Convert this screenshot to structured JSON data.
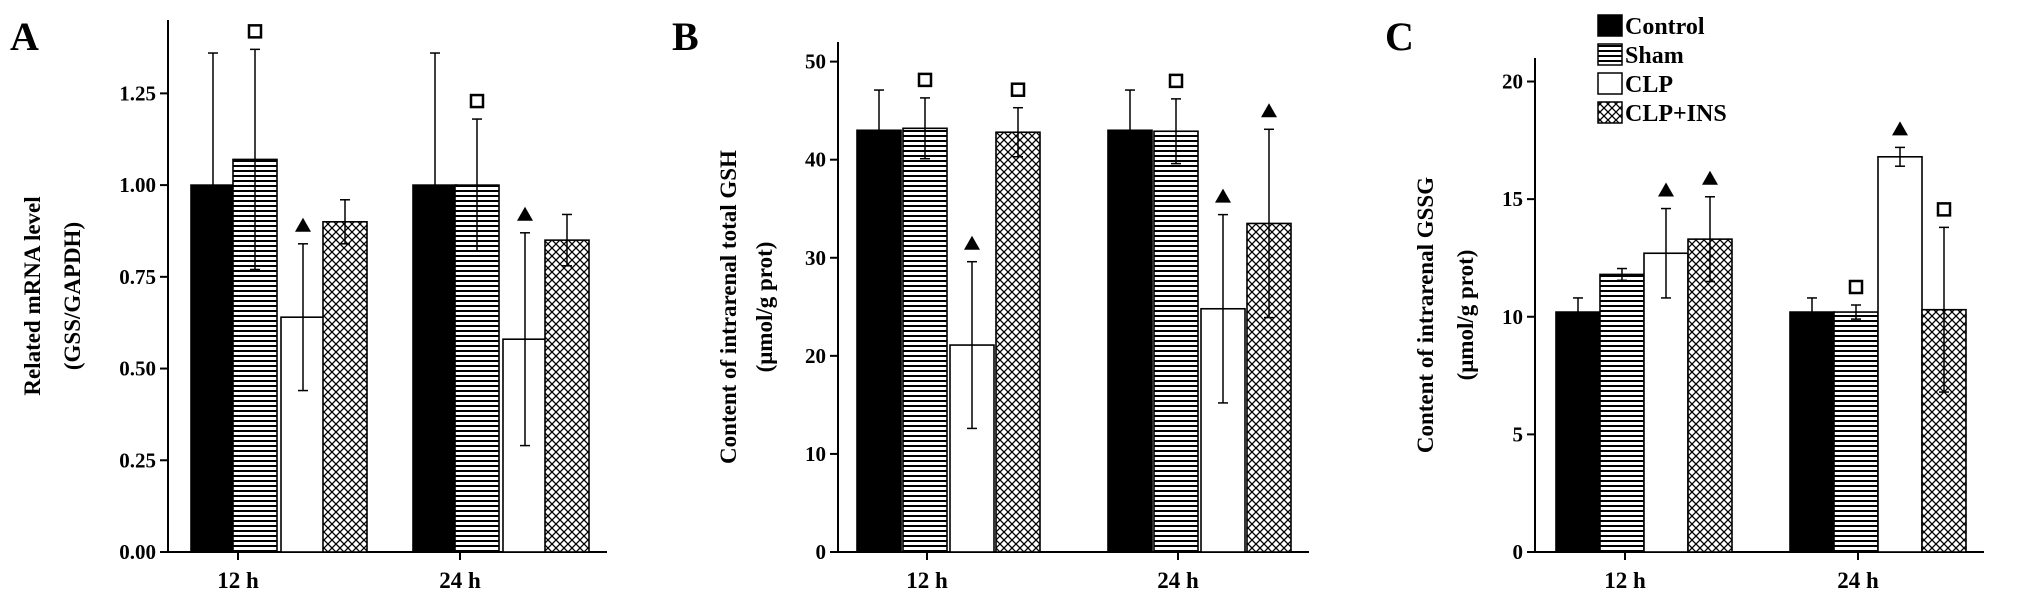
{
  "panels": [
    {
      "letter": "A",
      "ylabel_line1": "Related mRNA level",
      "ylabel_line2": "(GSS/GAPDH)",
      "chart_data": {
        "type": "bar",
        "title": "",
        "xlabel": "",
        "ylabel": "Related mRNA level (GSS/GAPDH)",
        "categories": [
          "12 h",
          "24 h"
        ],
        "ylim": [
          0,
          1.45
        ],
        "yticks": [
          0.0,
          0.25,
          0.5,
          0.75,
          1.0,
          1.25
        ],
        "ytick_labels": [
          "0.00",
          "0.25",
          "0.50",
          "0.75",
          "1.00",
          "1.25"
        ],
        "grid": false,
        "series": [
          {
            "name": "Control",
            "values": [
              1.0,
              1.0
            ],
            "errors": [
              0.36,
              0.36
            ],
            "markers": [
              "",
              ""
            ]
          },
          {
            "name": "Sham",
            "values": [
              1.07,
              1.0
            ],
            "errors": [
              0.3,
              0.18
            ],
            "markers": [
              "square",
              "square"
            ]
          },
          {
            "name": "CLP",
            "values": [
              0.64,
              0.58
            ],
            "errors": [
              0.2,
              0.29
            ],
            "markers": [
              "triangle",
              "triangle"
            ]
          },
          {
            "name": "CLP+INS",
            "values": [
              0.9,
              0.85
            ],
            "errors": [
              0.06,
              0.07
            ],
            "markers": [
              "",
              ""
            ]
          }
        ]
      }
    },
    {
      "letter": "B",
      "ylabel_line1": "Content of intrarenal total GSH",
      "ylabel_line2": "(μmol/g prot)",
      "chart_data": {
        "type": "bar",
        "title": "",
        "xlabel": "",
        "ylabel": "Content of intrarenal total GSH (μmol/g prot)",
        "categories": [
          "12 h",
          "24 h"
        ],
        "ylim": [
          0,
          52
        ],
        "yticks": [
          0,
          10,
          20,
          30,
          40,
          50
        ],
        "ytick_labels": [
          "0",
          "10",
          "20",
          "30",
          "40",
          "50"
        ],
        "grid": false,
        "series": [
          {
            "name": "Control",
            "values": [
              43.0,
              43.0
            ],
            "errors": [
              4.1,
              4.1
            ],
            "markers": [
              "",
              ""
            ]
          },
          {
            "name": "Sham",
            "values": [
              43.2,
              42.9
            ],
            "errors": [
              3.1,
              3.3
            ],
            "markers": [
              "square",
              "square"
            ]
          },
          {
            "name": "CLP",
            "values": [
              21.1,
              24.8
            ],
            "errors": [
              8.5,
              9.6
            ],
            "markers": [
              "triangle",
              "triangle"
            ]
          },
          {
            "name": "CLP+INS",
            "values": [
              42.8,
              33.5
            ],
            "errors": [
              2.5,
              9.6
            ],
            "markers": [
              "square",
              "triangle"
            ]
          }
        ]
      }
    },
    {
      "letter": "C",
      "ylabel_line1": "Content of intrarenal GSSG",
      "ylabel_line2": "(μmol/g prot)",
      "chart_data": {
        "type": "bar",
        "title": "",
        "xlabel": "",
        "ylabel": "Content of intrarenal GSSG (μmol/g prot)",
        "categories": [
          "12 h",
          "24 h"
        ],
        "ylim": [
          0,
          21
        ],
        "yticks": [
          0,
          5,
          10,
          15,
          20
        ],
        "ytick_labels": [
          "0",
          "5",
          "10",
          "15",
          "20"
        ],
        "grid": false,
        "legend_position": "top-left",
        "series": [
          {
            "name": "Control",
            "values": [
              10.2,
              10.2
            ],
            "errors": [
              0.6,
              0.6
            ],
            "markers": [
              "",
              ""
            ]
          },
          {
            "name": "Sham",
            "values": [
              11.8,
              10.2
            ],
            "errors": [
              0.25,
              0.3
            ],
            "markers": [
              "",
              "square"
            ]
          },
          {
            "name": "CLP",
            "values": [
              12.7,
              16.8
            ],
            "errors": [
              1.9,
              0.4
            ],
            "markers": [
              "triangle",
              "triangle"
            ]
          },
          {
            "name": "CLP+INS",
            "values": [
              13.3,
              10.3
            ],
            "errors": [
              1.8,
              3.5
            ],
            "markers": [
              "triangle",
              "square"
            ]
          }
        ]
      }
    }
  ],
  "legend": {
    "items": [
      "Control",
      "Sham",
      "CLP",
      "CLP+INS"
    ]
  },
  "colors": {
    "axis": "#000000",
    "control_fill": "#000000",
    "clp_fill": "#ffffff"
  }
}
